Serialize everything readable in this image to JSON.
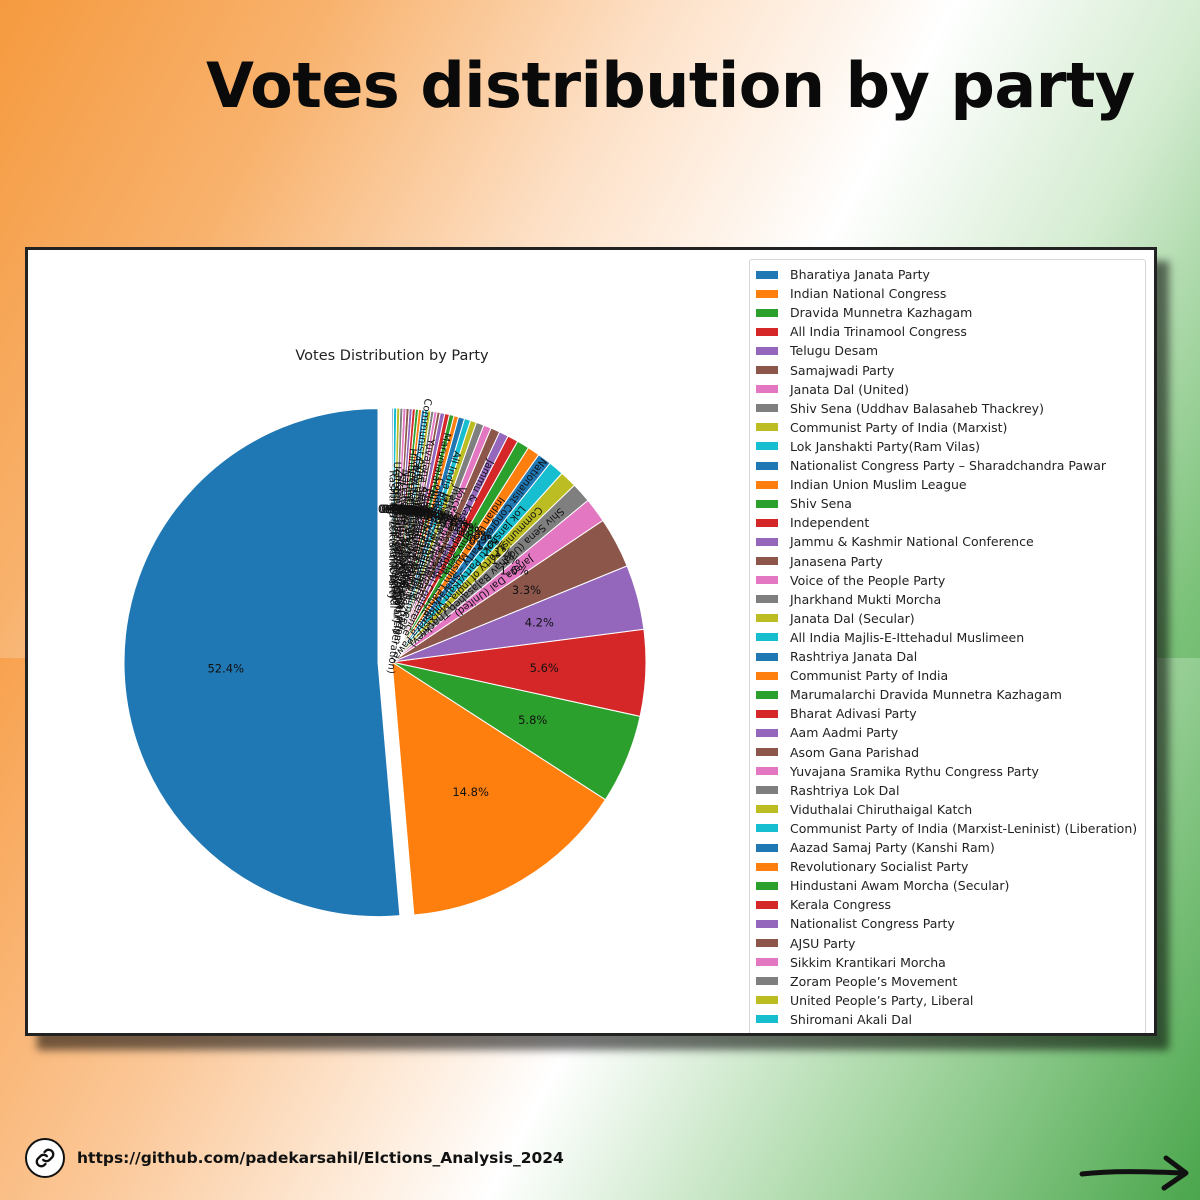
{
  "headline": {
    "text": "Votes distribution by party"
  },
  "footer": {
    "url": "https://github.com/padekarsahil/Elctions_Analysis_2024"
  },
  "icons": {
    "link": "link-icon",
    "next": "arrow-right-icon"
  },
  "chart_data": {
    "type": "pie",
    "title": "Votes Distribution by Party",
    "legend_placement": "right",
    "slices": [
      {
        "label": "Bharatiya Janata Party",
        "value": 52.4,
        "color": "#1f77b4"
      },
      {
        "label": "Indian National Congress",
        "value": 14.8,
        "color": "#ff7f0e"
      },
      {
        "label": "Dravida Munnetra Kazhagam",
        "value": 5.8,
        "color": "#2ca02c"
      },
      {
        "label": "All India Trinamool Congress",
        "value": 5.6,
        "color": "#d62728"
      },
      {
        "label": "Telugu Desam",
        "value": 4.2,
        "color": "#9467bd"
      },
      {
        "label": "Samajwadi Party",
        "value": 3.3,
        "color": "#8c564b"
      },
      {
        "label": "Janata Dal (United)",
        "value": 1.6,
        "color": "#e377c2"
      },
      {
        "label": "Shiv Sena (Uddhav Balasaheb Thackrey)",
        "value": 1.3,
        "color": "#7f7f7f"
      },
      {
        "label": "Communist Party of India (Marxist)",
        "value": 1.1,
        "color": "#bcbd22"
      },
      {
        "label": "Lok Janshakti Party(Ram Vilas)",
        "value": 1.0,
        "color": "#17becf"
      },
      {
        "label": "Nationalist Congress Party – Sharadchandra Pawar",
        "value": 0.9,
        "color": "#1f77b4"
      },
      {
        "label": "Indian Union Muslim League",
        "value": 0.8,
        "color": "#ff7f0e"
      },
      {
        "label": "Shiv Sena",
        "value": 0.8,
        "color": "#2ca02c"
      },
      {
        "label": "Independent",
        "value": 0.7,
        "color": "#d62728"
      },
      {
        "label": "Jammu & Kashmir National Conference",
        "value": 0.6,
        "color": "#9467bd"
      },
      {
        "label": "Janasena Party",
        "value": 0.6,
        "color": "#8c564b"
      },
      {
        "label": "Voice of the People Party",
        "value": 0.5,
        "color": "#e377c2"
      },
      {
        "label": "Jharkhand Mukti Morcha",
        "value": 0.5,
        "color": "#7f7f7f"
      },
      {
        "label": "Janata Dal (Secular)",
        "value": 0.4,
        "color": "#bcbd22"
      },
      {
        "label": "All India Majlis-E-Ittehadul Muslimeen",
        "value": 0.4,
        "color": "#17becf"
      },
      {
        "label": "Rashtriya Janata Dal",
        "value": 0.4,
        "color": "#1f77b4"
      },
      {
        "label": "Communist Party of India",
        "value": 0.3,
        "color": "#ff7f0e"
      },
      {
        "label": "Marumalarchi Dravida Munnetra Kazhagam",
        "value": 0.3,
        "color": "#2ca02c"
      },
      {
        "label": "Bharat Adivasi Party",
        "value": 0.3,
        "color": "#d62728"
      },
      {
        "label": "Aam Aadmi Party",
        "value": 0.3,
        "color": "#9467bd"
      },
      {
        "label": "Asom Gana Parishad",
        "value": 0.2,
        "color": "#8c564b"
      },
      {
        "label": "Yuvajana Sramika Rythu Congress Party",
        "value": 0.2,
        "color": "#e377c2"
      },
      {
        "label": "Rashtriya Lok Dal",
        "value": 0.2,
        "color": "#7f7f7f"
      },
      {
        "label": "Viduthalai Chiruthaigal Katch",
        "value": 0.2,
        "color": "#bcbd22"
      },
      {
        "label": "Communist Party of India (Marxist-Leninist) (Liberation)",
        "value": 0.2,
        "color": "#17becf"
      },
      {
        "label": "Aazad Samaj Party (Kanshi Ram)",
        "value": 0.2,
        "color": "#1f77b4"
      },
      {
        "label": "Revolutionary Socialist Party",
        "value": 0.2,
        "color": "#ff7f0e"
      },
      {
        "label": "Hindustani Awam Morcha (Secular)",
        "value": 0.2,
        "color": "#2ca02c"
      },
      {
        "label": "Kerala Congress",
        "value": 0.2,
        "color": "#d62728"
      },
      {
        "label": "Nationalist Congress Party",
        "value": 0.2,
        "color": "#9467bd"
      },
      {
        "label": "AJSU Party",
        "value": 0.2,
        "color": "#8c564b"
      },
      {
        "label": "Sikkim Krantikari Morcha",
        "value": 0.2,
        "color": "#e377c2"
      },
      {
        "label": "Zoram People’s Movement",
        "value": 0.2,
        "color": "#7f7f7f"
      },
      {
        "label": "United People’s Party, Liberal",
        "value": 0.2,
        "color": "#bcbd22"
      },
      {
        "label": "Shiromani Akali Dal",
        "value": 0.2,
        "color": "#17becf"
      },
      {
        "label": "Rashtriya Loktantrik Party",
        "value": 0.1,
        "color": "#1f77b4"
      }
    ]
  }
}
